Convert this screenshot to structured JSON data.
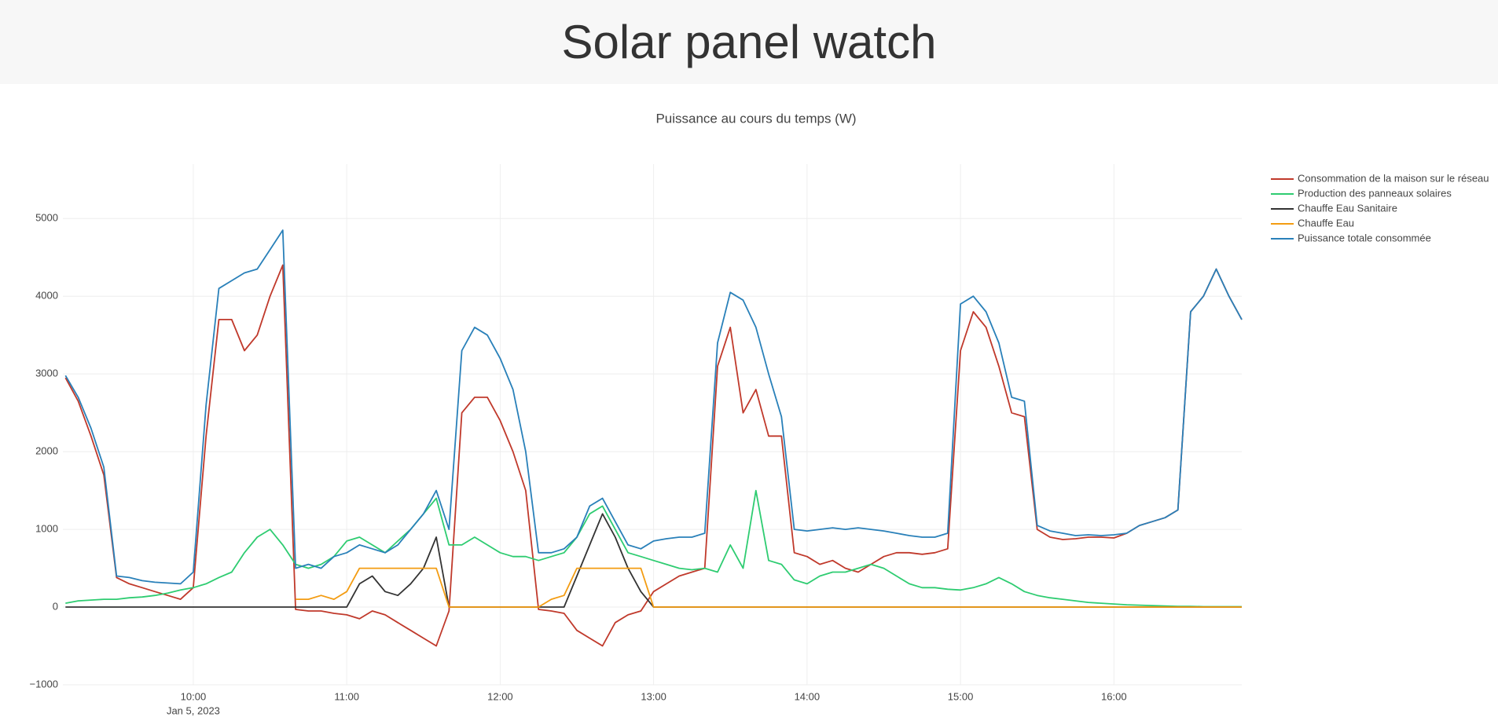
{
  "header": {
    "title": "Solar panel watch"
  },
  "chart_data": {
    "type": "line",
    "title": "Puissance au cours du temps (W)",
    "date_label": "Jan 5, 2023",
    "x": [
      "2023-01-05T09:10",
      "2023-01-05T09:15",
      "2023-01-05T09:20",
      "2023-01-05T09:25",
      "2023-01-05T09:30",
      "2023-01-05T09:35",
      "2023-01-05T09:40",
      "2023-01-05T09:45",
      "2023-01-05T09:50",
      "2023-01-05T09:55",
      "2023-01-05T10:00",
      "2023-01-05T10:05",
      "2023-01-05T10:10",
      "2023-01-05T10:15",
      "2023-01-05T10:20",
      "2023-01-05T10:25",
      "2023-01-05T10:30",
      "2023-01-05T10:35",
      "2023-01-05T10:40",
      "2023-01-05T10:45",
      "2023-01-05T10:50",
      "2023-01-05T10:55",
      "2023-01-05T11:00",
      "2023-01-05T11:05",
      "2023-01-05T11:10",
      "2023-01-05T11:15",
      "2023-01-05T11:20",
      "2023-01-05T11:25",
      "2023-01-05T11:30",
      "2023-01-05T11:35",
      "2023-01-05T11:40",
      "2023-01-05T11:45",
      "2023-01-05T11:50",
      "2023-01-05T11:55",
      "2023-01-05T12:00",
      "2023-01-05T12:05",
      "2023-01-05T12:10",
      "2023-01-05T12:15",
      "2023-01-05T12:20",
      "2023-01-05T12:25",
      "2023-01-05T12:30",
      "2023-01-05T12:35",
      "2023-01-05T12:40",
      "2023-01-05T12:45",
      "2023-01-05T12:50",
      "2023-01-05T12:55",
      "2023-01-05T13:00",
      "2023-01-05T13:05",
      "2023-01-05T13:10",
      "2023-01-05T13:15",
      "2023-01-05T13:20",
      "2023-01-05T13:25",
      "2023-01-05T13:30",
      "2023-01-05T13:35",
      "2023-01-05T13:40",
      "2023-01-05T13:45",
      "2023-01-05T13:50",
      "2023-01-05T13:55",
      "2023-01-05T14:00",
      "2023-01-05T14:05",
      "2023-01-05T14:10",
      "2023-01-05T14:15",
      "2023-01-05T14:20",
      "2023-01-05T14:25",
      "2023-01-05T14:30",
      "2023-01-05T14:35",
      "2023-01-05T14:40",
      "2023-01-05T14:45",
      "2023-01-05T14:50",
      "2023-01-05T14:55",
      "2023-01-05T15:00",
      "2023-01-05T15:05",
      "2023-01-05T15:10",
      "2023-01-05T15:15",
      "2023-01-05T15:20",
      "2023-01-05T15:25",
      "2023-01-05T15:30",
      "2023-01-05T15:35",
      "2023-01-05T15:40",
      "2023-01-05T15:45",
      "2023-01-05T15:50",
      "2023-01-05T15:55",
      "2023-01-05T16:00",
      "2023-01-05T16:05",
      "2023-01-05T16:10",
      "2023-01-05T16:15",
      "2023-01-05T16:20",
      "2023-01-05T16:25",
      "2023-01-05T16:30",
      "2023-01-05T16:35",
      "2023-01-05T16:40",
      "2023-01-05T16:45",
      "2023-01-05T16:50"
    ],
    "series": [
      {
        "name": "Consommation de la maison sur le réseau",
        "color": "#c0392b",
        "values": [
          2950,
          2650,
          2200,
          1700,
          380,
          300,
          250,
          200,
          150,
          100,
          250,
          2200,
          3700,
          3700,
          3300,
          3500,
          4000,
          4400,
          -30,
          -50,
          -50,
          -80,
          -100,
          -150,
          -50,
          -100,
          -200,
          -300,
          -400,
          -500,
          -50,
          2500,
          2700,
          2700,
          2400,
          2000,
          1500,
          -30,
          -50,
          -80,
          -300,
          -400,
          -500,
          -200,
          -100,
          -50,
          200,
          300,
          400,
          450,
          500,
          3100,
          3600,
          2500,
          2800,
          2200,
          2200,
          700,
          650,
          550,
          600,
          500,
          450,
          550,
          650,
          700,
          700,
          680,
          700,
          750,
          3300,
          3800,
          3600,
          3100,
          2500,
          2450,
          1000,
          900,
          870,
          880,
          900,
          900,
          890,
          950,
          1050,
          1100,
          1150,
          1250,
          3800,
          4000,
          4350,
          4000,
          3700
        ]
      },
      {
        "name": "Production des panneaux solaires",
        "color": "#2ecc71",
        "values": [
          50,
          80,
          90,
          100,
          100,
          120,
          130,
          150,
          180,
          220,
          250,
          300,
          380,
          450,
          700,
          900,
          1000,
          800,
          550,
          500,
          550,
          650,
          850,
          900,
          800,
          700,
          850,
          1000,
          1200,
          1400,
          800,
          800,
          900,
          800,
          700,
          650,
          650,
          600,
          650,
          700,
          900,
          1200,
          1300,
          1000,
          700,
          650,
          600,
          550,
          500,
          480,
          500,
          450,
          800,
          500,
          1500,
          600,
          550,
          350,
          300,
          400,
          450,
          450,
          500,
          550,
          500,
          400,
          300,
          250,
          250,
          230,
          220,
          250,
          300,
          380,
          300,
          200,
          150,
          120,
          100,
          80,
          60,
          50,
          40,
          30,
          25,
          20,
          15,
          10,
          10,
          5,
          5,
          5,
          5
        ]
      },
      {
        "name": "Chauffe Eau Sanitaire",
        "color": "#333333",
        "values": [
          0,
          0,
          0,
          0,
          0,
          0,
          0,
          0,
          0,
          0,
          0,
          0,
          0,
          0,
          0,
          0,
          0,
          0,
          0,
          0,
          0,
          0,
          0,
          300,
          400,
          200,
          150,
          300,
          500,
          900,
          0,
          0,
          0,
          0,
          0,
          0,
          0,
          0,
          0,
          0,
          400,
          800,
          1200,
          900,
          500,
          200,
          0,
          0,
          0,
          0,
          0,
          0,
          0,
          0,
          0,
          0,
          0,
          0,
          0,
          0,
          0,
          0,
          0,
          0,
          0,
          0,
          0,
          0,
          0,
          0,
          0,
          0,
          0,
          0,
          0,
          0,
          0,
          0,
          0,
          0,
          0,
          0,
          0,
          0,
          0,
          0,
          0,
          0,
          0,
          0,
          0,
          0,
          0
        ]
      },
      {
        "name": "Chauffe Eau",
        "color": "#f39c12",
        "values": [
          null,
          null,
          null,
          null,
          null,
          null,
          null,
          null,
          null,
          null,
          null,
          null,
          null,
          null,
          null,
          null,
          null,
          null,
          100,
          100,
          150,
          100,
          200,
          500,
          500,
          500,
          500,
          500,
          500,
          500,
          0,
          0,
          0,
          0,
          0,
          0,
          0,
          0,
          100,
          150,
          500,
          500,
          500,
          500,
          500,
          500,
          0,
          0,
          0,
          0,
          0,
          0,
          0,
          0,
          0,
          0,
          0,
          0,
          0,
          0,
          0,
          0,
          0,
          0,
          0,
          0,
          0,
          0,
          0,
          0,
          0,
          0,
          0,
          0,
          0,
          0,
          0,
          0,
          0,
          0,
          0,
          0,
          0,
          0,
          0,
          0,
          0,
          0,
          0,
          0,
          0,
          0,
          0
        ]
      },
      {
        "name": "Puissance totale consommée",
        "color": "#2980b9",
        "values": [
          2980,
          2700,
          2300,
          1800,
          400,
          380,
          340,
          320,
          310,
          300,
          450,
          2600,
          4100,
          4200,
          4300,
          4350,
          4600,
          4850,
          500,
          550,
          500,
          650,
          700,
          800,
          750,
          700,
          800,
          1000,
          1200,
          1500,
          1000,
          3300,
          3600,
          3500,
          3200,
          2800,
          2000,
          700,
          700,
          750,
          900,
          1300,
          1400,
          1100,
          800,
          750,
          850,
          880,
          900,
          900,
          950,
          3400,
          4050,
          3950,
          3600,
          3000,
          2450,
          1000,
          980,
          1000,
          1020,
          1000,
          1020,
          1000,
          980,
          950,
          920,
          900,
          900,
          950,
          3900,
          4000,
          3800,
          3400,
          2700,
          2650,
          1050,
          980,
          950,
          920,
          930,
          920,
          930,
          950,
          1050,
          1100,
          1150,
          1250,
          3800,
          4000,
          4350,
          4000,
          3700
        ]
      }
    ],
    "xlim": [
      "2023-01-05T09:09",
      "2023-01-05T16:50"
    ],
    "xticks": [
      {
        "value": "2023-01-05T10:00",
        "label": "10:00"
      },
      {
        "value": "2023-01-05T11:00",
        "label": "11:00"
      },
      {
        "value": "2023-01-05T12:00",
        "label": "12:00"
      },
      {
        "value": "2023-01-05T13:00",
        "label": "13:00"
      },
      {
        "value": "2023-01-05T14:00",
        "label": "14:00"
      },
      {
        "value": "2023-01-05T15:00",
        "label": "15:00"
      },
      {
        "value": "2023-01-05T16:00",
        "label": "16:00"
      }
    ],
    "ylim": [
      -1000,
      5700
    ],
    "yticks": [
      {
        "value": -1000,
        "label": "−1000"
      },
      0,
      1000,
      2000,
      3000,
      4000,
      5000
    ],
    "grid": true,
    "legend": "right"
  }
}
